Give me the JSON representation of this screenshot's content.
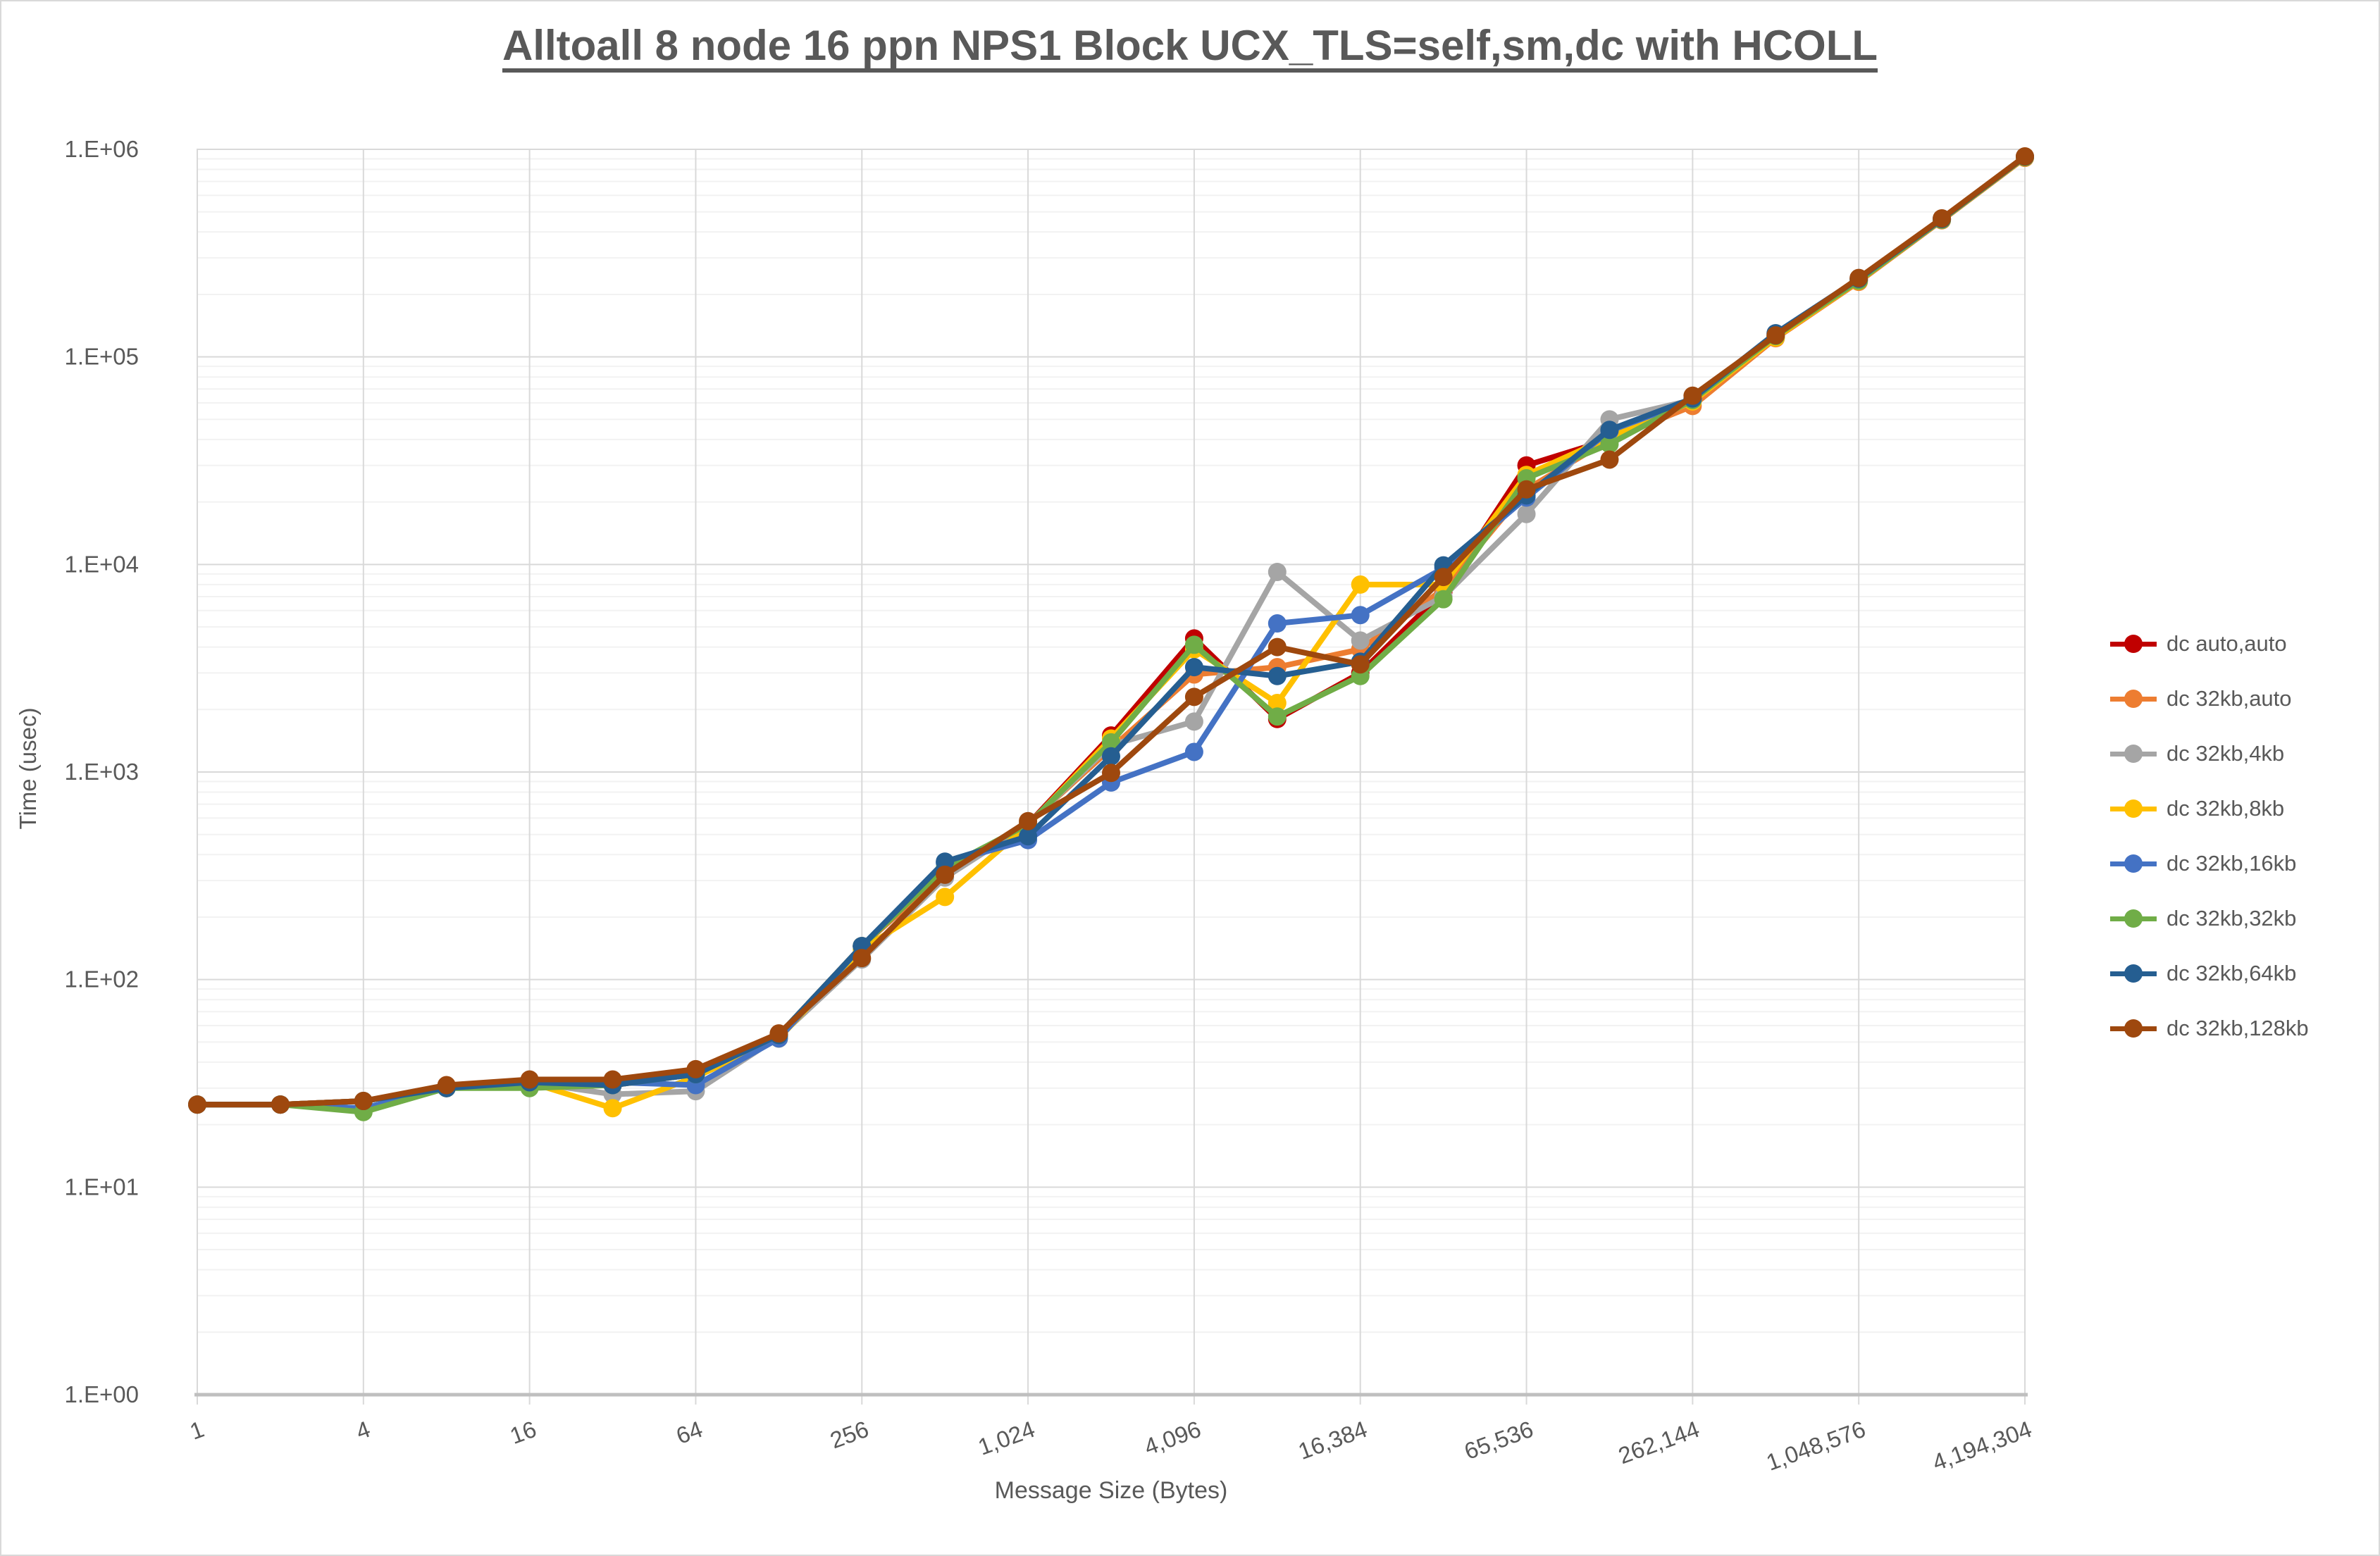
{
  "title": "Alltoall 8 node 16 ppn NPS1 Block UCX_TLS=self,sm,dc with HCOLL",
  "axes": {
    "x_title": "Message Size (Bytes)",
    "y_title": "Time (usec)",
    "y_tick_labels": [
      "1.E+00",
      "1.E+01",
      "1.E+02",
      "1.E+03",
      "1.E+04",
      "1.E+05",
      "1.E+06"
    ],
    "x_tick_labels": [
      "1",
      "4",
      "16",
      "64",
      "256",
      "1,024",
      "4,096",
      "16,384",
      "65,536",
      "262,144",
      "1,048,576",
      "4,194,304"
    ],
    "x_tick_values": [
      1,
      4,
      16,
      64,
      256,
      1024,
      4096,
      16384,
      65536,
      262144,
      1048576,
      4194304
    ]
  },
  "colors": {
    "grid_major": "#d9d9d9",
    "grid_minor": "#f2f2f2",
    "axis_line": "#bfbfbf",
    "text": "#595959"
  },
  "chart_data": {
    "type": "line",
    "x_scale": "log2",
    "y_scale": "log10",
    "title": "Alltoall 8 node 16 ppn NPS1 Block UCX_TLS=self,sm,dc with HCOLL",
    "xlabel": "Message Size (Bytes)",
    "ylabel": "Time (usec)",
    "ylim": [
      1,
      1000000
    ],
    "xlim": [
      1,
      4194304
    ],
    "grid": true,
    "legend_position": "right",
    "categories": [
      1,
      2,
      4,
      8,
      16,
      32,
      64,
      128,
      256,
      512,
      1024,
      2048,
      4096,
      8192,
      16384,
      32768,
      65536,
      131072,
      262144,
      524288,
      1048576,
      2097152,
      4194304
    ],
    "series": [
      {
        "name": "dc auto,auto",
        "color": "#C00000",
        "values": [
          25,
          25,
          26,
          30,
          32,
          31,
          35,
          54,
          145,
          330,
          560,
          1500,
          4400,
          1800,
          3000,
          7400,
          30000,
          40000,
          62000,
          125000,
          235000,
          460000,
          920000
        ]
      },
      {
        "name": "dc 32kb,auto",
        "color": "#ED7D31",
        "values": [
          25,
          25,
          26,
          30,
          32,
          31,
          35,
          54,
          145,
          330,
          565,
          1300,
          2950,
          3200,
          3900,
          7600,
          23000,
          40000,
          58000,
          123000,
          230000,
          455000,
          910000
        ]
      },
      {
        "name": "dc 32kb,4kb",
        "color": "#A5A5A5",
        "values": [
          25,
          25,
          26,
          30,
          32,
          28,
          29,
          53,
          125,
          310,
          560,
          1350,
          1750,
          9200,
          4300,
          7000,
          17500,
          50000,
          62000,
          130000,
          235000,
          460000,
          920000
        ]
      },
      {
        "name": "dc 32kb,8kb",
        "color": "#FFC000",
        "values": [
          25,
          25,
          26,
          30,
          32,
          24,
          34,
          52,
          140,
          250,
          555,
          1450,
          3900,
          2150,
          8000,
          8000,
          27000,
          41000,
          61000,
          124000,
          232000,
          458000,
          915000
        ]
      },
      {
        "name": "dc 32kb,16kb",
        "color": "#4472C4",
        "values": [
          25,
          25,
          24,
          30,
          32,
          32,
          31,
          52,
          145,
          365,
          470,
          890,
          1250,
          5200,
          5700,
          9600,
          21000,
          44000,
          62000,
          128000,
          235000,
          460000,
          920000
        ]
      },
      {
        "name": "dc 32kb,32kb",
        "color": "#70AD47",
        "values": [
          25,
          25,
          23,
          30,
          30,
          31,
          35,
          54,
          145,
          345,
          560,
          1390,
          4100,
          1850,
          2900,
          6800,
          26000,
          38000,
          62000,
          126000,
          233000,
          458000,
          918000
        ]
      },
      {
        "name": "dc 32kb,64kb",
        "color": "#255E91",
        "values": [
          25,
          25,
          26,
          30,
          32,
          31,
          35,
          54,
          145,
          370,
          490,
          1190,
          3200,
          2900,
          3400,
          9900,
          21500,
          44500,
          63000,
          130000,
          238000,
          462000,
          922000
        ]
      },
      {
        "name": "dc 32kb,128kb",
        "color": "#9E480E",
        "values": [
          25,
          25,
          26,
          31,
          33,
          33,
          37,
          55,
          127,
          320,
          580,
          990,
          2300,
          4000,
          3300,
          8700,
          23000,
          32000,
          65000,
          127000,
          240000,
          465000,
          925000
        ]
      }
    ]
  }
}
